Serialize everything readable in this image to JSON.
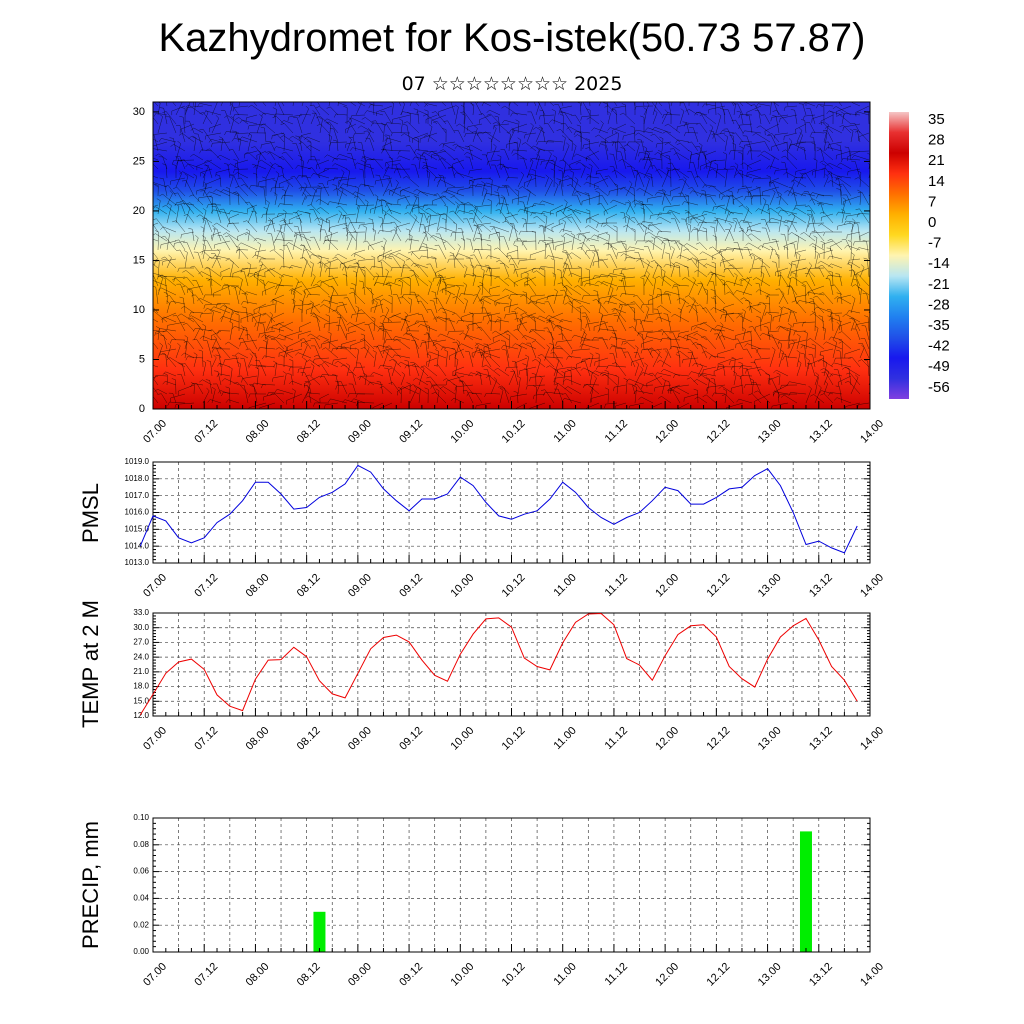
{
  "page": {
    "title": "Kazhydromet for Kos-istek(50.73 57.87)",
    "subtitle": "07 ☆☆☆☆☆☆☆☆ 2025"
  },
  "colors": {
    "pmsl_line": "#0000dd",
    "temp_line": "#ee0000",
    "precip_bar": "#00ee00",
    "grid": "#444444"
  },
  "chart_data": [
    {
      "type": "heatmap",
      "title": "",
      "x_tick_labels": [
        "07.00",
        "07.12",
        "08.00",
        "08.12",
        "09.00",
        "09.12",
        "10.00",
        "10.12",
        "11.00",
        "11.12",
        "12.00",
        "12.12",
        "13.00",
        "13.12",
        "14.00"
      ],
      "y_ticks": [
        0,
        5,
        10,
        15,
        20,
        25,
        30
      ],
      "ylim": [
        0,
        31
      ],
      "overlay": "wind barbs",
      "colorbar": {
        "labels": [
          "35",
          "28",
          "21",
          "14",
          "7",
          "0",
          "-7",
          "-14",
          "-21",
          "-28",
          "-35",
          "-42",
          "-49",
          "-56"
        ],
        "stops": [
          {
            "v": 35,
            "c": "#f5c6c6"
          },
          {
            "v": 28,
            "c": "#e83030"
          },
          {
            "v": 21,
            "c": "#cc0000"
          },
          {
            "v": 14,
            "c": "#ff3010"
          },
          {
            "v": 7,
            "c": "#ff7000"
          },
          {
            "v": 0,
            "c": "#ffb000"
          },
          {
            "v": -7,
            "c": "#ffd820"
          },
          {
            "v": -14,
            "c": "#fff4b0"
          },
          {
            "v": -21,
            "c": "#b8e6f2"
          },
          {
            "v": -28,
            "c": "#30b0f0"
          },
          {
            "v": -35,
            "c": "#2080f0"
          },
          {
            "v": -42,
            "c": "#2050e8"
          },
          {
            "v": -49,
            "c": "#1818ee"
          },
          {
            "v": -56,
            "c": "#3030e0"
          },
          {
            "v": -63,
            "c": "#8040e0"
          }
        ]
      }
    },
    {
      "type": "line",
      "ylabel": "PMSL",
      "x_tick_labels": [
        "07.00",
        "07.12",
        "08.00",
        "08.12",
        "09.00",
        "09.12",
        "10.00",
        "10.12",
        "11.00",
        "11.12",
        "12.00",
        "12.12",
        "13.00",
        "13.12",
        "14.00"
      ],
      "y_tick_labels": [
        "1019.0",
        "1018.0",
        "1017.0",
        "1016.0",
        "1015.0",
        "1014.0",
        "1013.0"
      ],
      "ylim": [
        1013.0,
        1019.0
      ],
      "x_hours": [
        -3,
        0,
        3,
        6,
        9,
        12,
        15,
        18,
        21,
        24,
        27,
        30,
        33,
        36,
        39,
        42,
        45,
        48,
        51,
        54,
        57,
        60,
        63,
        66,
        69,
        72,
        75,
        78,
        81,
        84,
        87,
        90,
        93,
        96,
        99,
        102,
        105,
        108,
        111,
        114,
        117,
        120,
        123,
        126,
        129,
        132,
        135,
        138,
        141,
        144,
        147,
        150,
        153,
        156,
        159,
        162,
        165
      ],
      "values": [
        1014.0,
        1015.8,
        1015.5,
        1014.5,
        1014.2,
        1014.5,
        1015.4,
        1015.9,
        1016.7,
        1017.8,
        1017.8,
        1017.1,
        1016.2,
        1016.3,
        1016.9,
        1017.2,
        1017.7,
        1018.8,
        1018.4,
        1017.4,
        1016.7,
        1016.1,
        1016.8,
        1016.8,
        1017.1,
        1018.1,
        1017.6,
        1016.6,
        1015.8,
        1015.6,
        1015.9,
        1016.1,
        1016.8,
        1017.8,
        1017.2,
        1016.3,
        1015.7,
        1015.3,
        1015.7,
        1016.0,
        1016.7,
        1017.5,
        1017.3,
        1016.5,
        1016.5,
        1016.9,
        1017.4,
        1017.5,
        1018.2,
        1018.6,
        1017.6,
        1016.0,
        1014.1,
        1014.3,
        1013.9,
        1013.6,
        1015.2
      ]
    },
    {
      "type": "line",
      "ylabel": "TEMP at 2 M",
      "x_tick_labels": [
        "07.00",
        "07.12",
        "08.00",
        "08.12",
        "09.00",
        "09.12",
        "10.00",
        "10.12",
        "11.00",
        "11.12",
        "12.00",
        "12.12",
        "13.00",
        "13.12",
        "14.00"
      ],
      "y_tick_labels": [
        "33.0",
        "30.0",
        "27.0",
        "24.0",
        "21.0",
        "18.0",
        "15.0",
        "12.0"
      ],
      "ylim": [
        12.0,
        33.0
      ],
      "x_hours": [
        -3,
        0,
        3,
        6,
        9,
        12,
        15,
        18,
        21,
        24,
        27,
        30,
        33,
        36,
        39,
        42,
        45,
        48,
        51,
        54,
        57,
        60,
        63,
        66,
        69,
        72,
        75,
        78,
        81,
        84,
        87,
        90,
        93,
        96,
        99,
        102,
        105,
        108,
        111,
        114,
        117,
        120,
        123,
        126,
        129,
        132,
        135,
        138,
        141,
        144,
        147,
        150,
        153,
        156,
        159,
        162,
        165
      ],
      "values": [
        12.2,
        16.4,
        20.7,
        23.0,
        23.6,
        21.5,
        16.3,
        14.0,
        13.1,
        19.5,
        23.4,
        23.5,
        26.0,
        24.1,
        19.2,
        16.5,
        15.7,
        20.7,
        25.7,
        28.0,
        28.5,
        27.1,
        23.4,
        20.3,
        19.1,
        24.6,
        28.7,
        31.8,
        32.0,
        30.1,
        23.8,
        22.1,
        21.4,
        26.9,
        31.1,
        32.8,
        32.9,
        30.6,
        23.7,
        22.4,
        19.3,
        24.3,
        28.6,
        30.4,
        30.6,
        28.1,
        22.1,
        19.6,
        17.9,
        23.6,
        28.1,
        30.4,
        31.9,
        27.5,
        22.1,
        19.3,
        15.0
      ]
    },
    {
      "type": "bar",
      "ylabel": "PRECIP, mm",
      "x_tick_labels": [
        "07.00",
        "07.12",
        "08.00",
        "08.12",
        "09.00",
        "09.12",
        "10.00",
        "10.12",
        "11.00",
        "11.12",
        "12.00",
        "12.12",
        "13.00",
        "13.12",
        "14.00"
      ],
      "y_tick_labels": [
        "0.10",
        "0.08",
        "0.06",
        "0.04",
        "0.02",
        "0.00"
      ],
      "ylim": [
        0.0,
        0.1
      ],
      "bars": [
        {
          "x_hour": 39,
          "value": 0.03
        },
        {
          "x_hour": 153,
          "value": 0.09
        }
      ]
    }
  ]
}
